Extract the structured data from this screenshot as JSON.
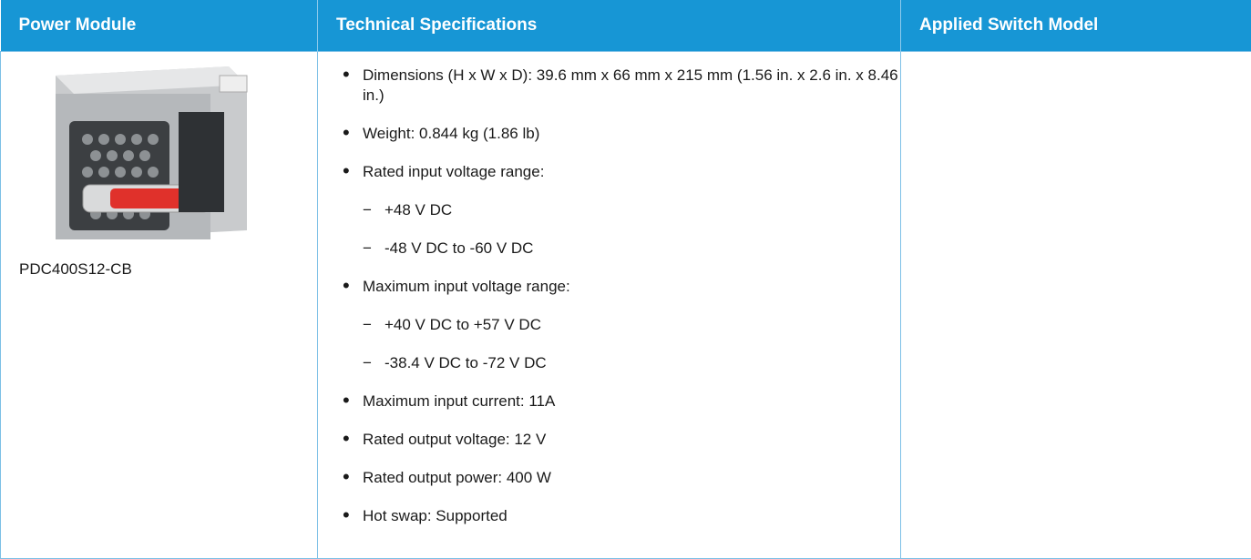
{
  "table": {
    "headers": [
      "Power Module",
      "Technical Specifications",
      "Applied Switch Model"
    ],
    "rows": [
      {
        "module": "PDC400S12-CB",
        "specs": [
          {
            "text": "Dimensions (H x W x D): 39.6 mm x 66 mm x 215 mm (1.56 in. x 2.6 in. x 8.46 in.)"
          },
          {
            "text": "Weight: 0.844 kg (1.86 lb)"
          },
          {
            "text": "Rated input voltage range:",
            "sub": [
              "+48 V DC",
              "-48 V DC to -60 V DC"
            ]
          },
          {
            "text": "Maximum input voltage range:",
            "sub": [
              "+40 V DC to +57 V DC",
              "-38.4 V DC to -72 V DC"
            ]
          },
          {
            "text": "Maximum input current: 11A"
          },
          {
            "text": "Rated output voltage: 12 V"
          },
          {
            "text": "Rated output power: 400 W"
          },
          {
            "text": "Hot swap: Supported"
          }
        ]
      }
    ]
  }
}
